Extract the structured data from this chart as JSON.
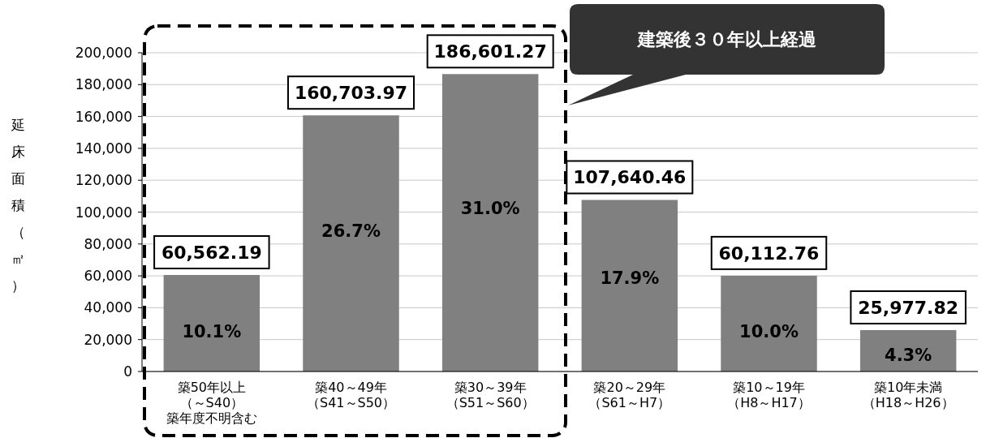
{
  "chart_data": {
    "type": "bar",
    "ylabel": "延床面積（㎡）",
    "categories": [
      "築50年以上（～S40）築年度不明含む",
      "築40～49年（S41～S50）",
      "築30～39年（S51～S60）",
      "築20～29年（S61～H7）",
      "築10～19年（H8～H17）",
      "築10年未満（H18～H26）"
    ],
    "values": [
      60562.19,
      160703.97,
      186601.27,
      107640.46,
      60112.76,
      25977.82
    ],
    "color": "#808080",
    "value_labels": [
      "60,562.19",
      "160,703.97",
      "186,601.27",
      "107,640.46",
      "60,112.76",
      "25,977.82"
    ],
    "ylim": [
      0,
      200000
    ],
    "yticks": [
      {
        "value": 0,
        "label": "0"
      },
      {
        "value": 20000,
        "label": "20,000"
      },
      {
        "value": 40000,
        "label": "40,000"
      },
      {
        "value": 60000,
        "label": "60,000"
      },
      {
        "value": 80000,
        "label": "80,000"
      },
      {
        "value": 100000,
        "label": "100,000"
      },
      {
        "value": 120000,
        "label": "120,000"
      },
      {
        "value": 140000,
        "label": "140,000"
      },
      {
        "value": 160000,
        "label": "160,000"
      },
      {
        "value": 180000,
        "label": "180,000"
      },
      {
        "value": 200000,
        "label": "200,000"
      }
    ],
    "grid": "y",
    "annotations": [
      "10.1%",
      "26.7%",
      "31.0%",
      "17.9%",
      "10.0%",
      "4.3%",
      "建築後３０年以上経過"
    ]
  }
}
